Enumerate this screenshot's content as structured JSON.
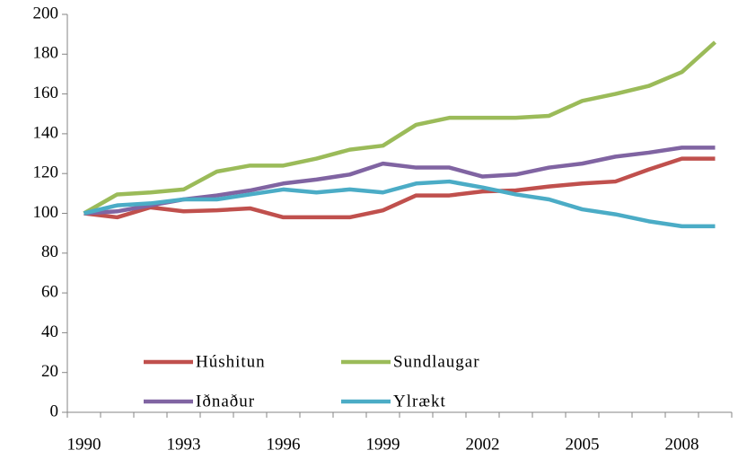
{
  "chart_data": {
    "type": "line",
    "categories": [
      "1990",
      null,
      null,
      "1993",
      null,
      null,
      "1996",
      null,
      null,
      "1999",
      null,
      null,
      "2002",
      null,
      null,
      "2005",
      null,
      null,
      "2008",
      null
    ],
    "series": [
      {
        "name": "Húshitun",
        "color": "#c0504d",
        "values": [
          100,
          98,
          103,
          101,
          101.5,
          102.5,
          98,
          98,
          98,
          101.5,
          109,
          109,
          111,
          111.5,
          113.5,
          115,
          116,
          122,
          127.5,
          127.5
        ]
      },
      {
        "name": "Sundlaugar",
        "color": "#9bbb59",
        "values": [
          100,
          109.5,
          110.5,
          112,
          121,
          124,
          124,
          127.5,
          132,
          134,
          144.5,
          148,
          148,
          148,
          149,
          156.5,
          160,
          164,
          171,
          186
        ]
      },
      {
        "name": "Iðnaður",
        "color": "#8064a2",
        "values": [
          100,
          101,
          104,
          107,
          109,
          111.5,
          115,
          117,
          119.5,
          125,
          123,
          123,
          118.5,
          119.5,
          123,
          125,
          128.5,
          130.5,
          133,
          133
        ]
      },
      {
        "name": "Ylrækt",
        "color": "#4bacc6",
        "values": [
          100,
          104,
          105,
          107,
          107,
          109.5,
          112,
          110.5,
          112,
          110.5,
          115,
          116,
          113,
          109.5,
          107,
          102,
          99.5,
          96,
          93.5,
          93.5
        ]
      }
    ],
    "ylim": [
      0,
      200
    ],
    "yticks": [
      0,
      20,
      40,
      60,
      80,
      100,
      120,
      140,
      160,
      180,
      200
    ],
    "grid": false
  }
}
